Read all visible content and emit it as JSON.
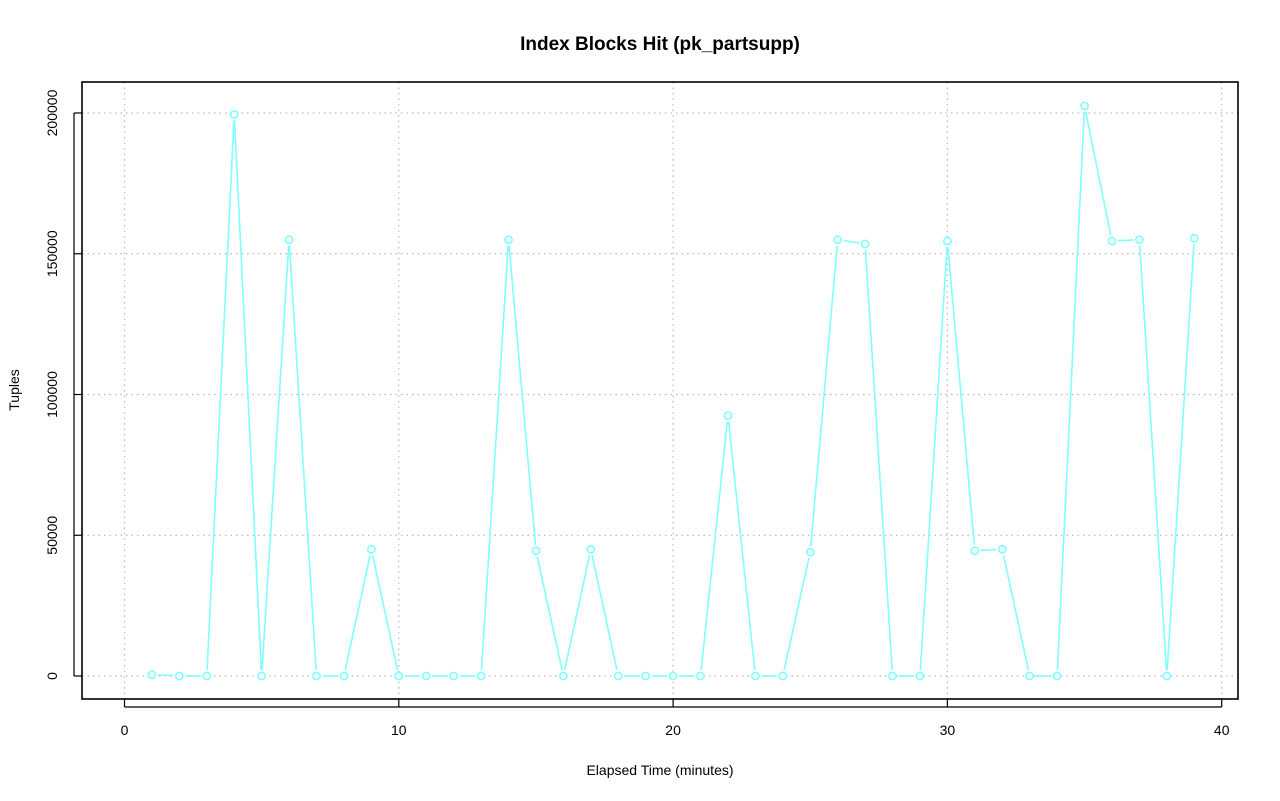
{
  "chart_data": {
    "type": "line",
    "title": "Index Blocks Hit (pk_partsupp)",
    "xlabel": "Elapsed Time (minutes)",
    "ylabel": "Tuples",
    "xlim": [
      0,
      40
    ],
    "ylim": [
      0,
      200000
    ],
    "x_ticks": [
      0,
      10,
      20,
      30,
      40
    ],
    "y_ticks": [
      0,
      50000,
      100000,
      150000,
      200000
    ],
    "grid": true,
    "series": [
      {
        "color": "#7fffff",
        "x": [
          1,
          2,
          3,
          4,
          5,
          6,
          7,
          8,
          9,
          10,
          11,
          12,
          13,
          14,
          15,
          16,
          17,
          18,
          19,
          20,
          21,
          22,
          23,
          24,
          25,
          26,
          27,
          28,
          29,
          30,
          31,
          32,
          33,
          34,
          35,
          36,
          37,
          38,
          39
        ],
        "y": [
          500,
          0,
          0,
          199500,
          0,
          155000,
          0,
          0,
          45000,
          0,
          0,
          0,
          0,
          155000,
          44500,
          0,
          45000,
          0,
          0,
          0,
          0,
          92500,
          0,
          0,
          44000,
          155000,
          153500,
          0,
          0,
          154500,
          44500,
          45000,
          0,
          0,
          202500,
          154500,
          155000,
          0,
          155500
        ]
      }
    ]
  }
}
